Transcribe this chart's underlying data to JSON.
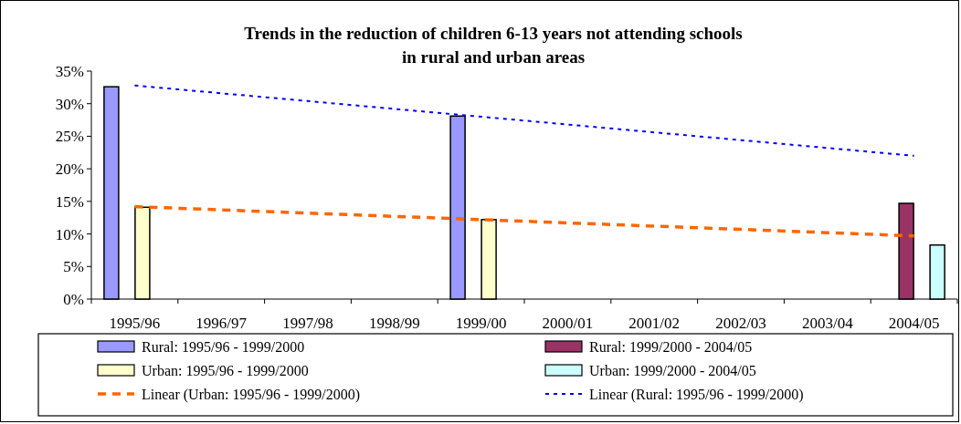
{
  "chart_data": {
    "type": "bar",
    "title": "Trends in the reduction of children 6-13 years not attending schools\nin rural and urban areas",
    "categories": [
      "1995/96",
      "1996/97",
      "1997/98",
      "1998/99",
      "1999/00",
      "2000/01",
      "2001/02",
      "2002/03",
      "2003/04",
      "2004/05"
    ],
    "series": [
      {
        "name": "Rural: 1995/96 - 1999/2000",
        "color": "#9999ff",
        "values": [
          32.6,
          null,
          null,
          null,
          28.1,
          null,
          null,
          null,
          null,
          null
        ]
      },
      {
        "name": "Rural: 1999/2000 - 2004/05",
        "color": "#993366",
        "values": [
          null,
          null,
          null,
          null,
          null,
          null,
          null,
          null,
          null,
          14.7
        ]
      },
      {
        "name": "Urban: 1995/96 - 1999/2000",
        "color": "#ffffcc",
        "values": [
          14.1,
          null,
          null,
          null,
          12.2,
          null,
          null,
          null,
          null,
          null
        ]
      },
      {
        "name": "Urban: 1999/2000 - 2004/05",
        "color": "#ccffff",
        "values": [
          null,
          null,
          null,
          null,
          null,
          null,
          null,
          null,
          null,
          8.3
        ]
      },
      {
        "name": "Linear (Urban: 1995/96 - 1999/2000)",
        "type": "line",
        "line_style": "dashed",
        "color": "#ff6600",
        "values": [
          14.2,
          13.7,
          13.2,
          12.7,
          12.2,
          11.7,
          11.2,
          10.7,
          10.2,
          9.7
        ]
      },
      {
        "name": "Linear (Rural: 1995/96 - 1999/2000)",
        "type": "line",
        "line_style": "dotted",
        "color": "#0000ff",
        "values": [
          32.8,
          31.6,
          30.4,
          29.2,
          28.0,
          26.8,
          25.6,
          24.4,
          23.2,
          22.0
        ]
      }
    ],
    "ylim": [
      0,
      35
    ],
    "yticks": [
      {
        "value": 0,
        "label": "0%"
      },
      {
        "value": 5,
        "label": "5%"
      },
      {
        "value": 10,
        "label": "10%"
      },
      {
        "value": 15,
        "label": "15%"
      },
      {
        "value": 20,
        "label": "20%"
      },
      {
        "value": 25,
        "label": "25%"
      },
      {
        "value": 30,
        "label": "30%"
      },
      {
        "value": 35,
        "label": "35%"
      }
    ],
    "grid": false,
    "legend": "bottom",
    "marker": "none"
  }
}
